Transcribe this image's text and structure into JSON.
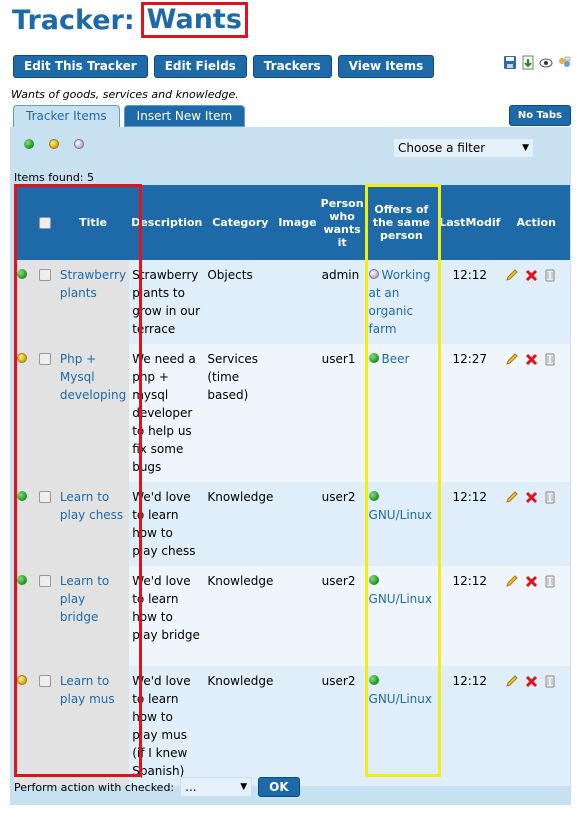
{
  "header": {
    "prefix": "Tracker:",
    "name": "Wants"
  },
  "toolbar": {
    "edit_tracker": "Edit This Tracker",
    "edit_fields": "Edit Fields",
    "trackers": "Trackers",
    "view_items": "View Items"
  },
  "description": "Wants of goods, services and knowledge.",
  "tabs": {
    "tracker_items": "Tracker Items",
    "insert_new": "Insert New Item",
    "no_tabs": "No Tabs"
  },
  "filter": {
    "placeholder": "Choose a filter",
    "arrow": "▼"
  },
  "items_found": "Items found: 5",
  "columns": {
    "title": "Title",
    "description": "Description",
    "category": "Category",
    "image": "Image",
    "person": "Person who wants it",
    "offers": "Offers of the same person",
    "lastmod": "LastModif",
    "action": "Action"
  },
  "rows": [
    {
      "status": "green",
      "title": "Strawberry plants",
      "description": "Strawberry plants to grow in our terrace",
      "category": "Objects",
      "person": "admin",
      "offer_status": "closed",
      "offer": "Working at an organic farm",
      "time": "12:12"
    },
    {
      "status": "yellow",
      "title": "Php + Mysql developing",
      "description": "We need a php + mysql developer to help us fix some bugs",
      "category": "Services (time based)",
      "person": "user1",
      "offer_status": "green",
      "offer": "Beer",
      "time": "12:27"
    },
    {
      "status": "green",
      "title": "Learn to play chess",
      "description": "We'd love to learn how to play chess",
      "category": "Knowledge",
      "person": "user2",
      "offer_status": "green",
      "offer": "GNU/Linux",
      "time": "12:12"
    },
    {
      "status": "green",
      "title": "Learn to play bridge",
      "description": "We'd love to learn how to play bridge",
      "category": "Knowledge",
      "person": "user2",
      "offer_status": "green",
      "offer": "GNU/Linux",
      "time": "12:12"
    },
    {
      "status": "yellow",
      "title": "Learn to play mus",
      "description": "We'd love to learn how to play mus (if I knew Spanish)",
      "category": "Knowledge",
      "person": "user2",
      "offer_status": "green",
      "offer": "GNU/Linux",
      "time": "12:12"
    }
  ],
  "bulk": {
    "label": "Perform action with checked:",
    "select": "...",
    "arrow": "▼",
    "ok": "OK"
  },
  "colors": {
    "accent": "#1e6aa8",
    "highlight_red": "#e0121b",
    "highlight_yellow": "#f2ee14"
  }
}
